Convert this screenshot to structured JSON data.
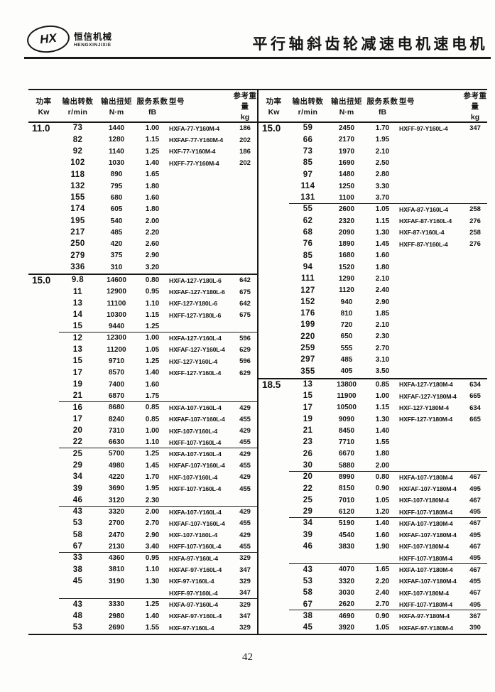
{
  "header": {
    "logo_hx": "HX",
    "logo_cn": "恒信机械",
    "logo_en": "HENGXINJIXIE",
    "title": "平行轴斜齿轮减速电机速电机"
  },
  "columns": [
    {
      "label": "功率",
      "unit": "Kw"
    },
    {
      "label": "输出转数",
      "unit": "r/min"
    },
    {
      "label": "输出扭矩",
      "unit": "N·m"
    },
    {
      "label": "服务系数",
      "unit": "fB"
    },
    {
      "label": "型号",
      "unit": ""
    },
    {
      "label": "参考重量",
      "unit": "kg"
    }
  ],
  "page_number": "42",
  "tables": [
    {
      "name": "left",
      "sections": [
        {
          "power": "11.0",
          "groups": [
            {
              "rows": [
                [
                  "73",
                  "1440",
                  "1.00",
                  "HXFA-77-Y160M-4",
                  "186"
                ],
                [
                  "82",
                  "1280",
                  "1.15",
                  "HXFAF-77-Y160M-4",
                  "202"
                ],
                [
                  "92",
                  "1140",
                  "1.25",
                  "HXF-77-Y160M-4",
                  "186"
                ],
                [
                  "102",
                  "1030",
                  "1.40",
                  "HXFF-77-Y160M-4",
                  "202"
                ],
                [
                  "118",
                  "890",
                  "1.65",
                  "",
                  ""
                ],
                [
                  "132",
                  "795",
                  "1.80",
                  "",
                  ""
                ],
                [
                  "155",
                  "680",
                  "1.60",
                  "",
                  ""
                ],
                [
                  "174",
                  "605",
                  "1.80",
                  "",
                  ""
                ],
                [
                  "195",
                  "540",
                  "2.00",
                  "",
                  ""
                ],
                [
                  "217",
                  "485",
                  "2.20",
                  "",
                  ""
                ],
                [
                  "250",
                  "420",
                  "2.60",
                  "",
                  ""
                ],
                [
                  "279",
                  "375",
                  "2.90",
                  "",
                  ""
                ],
                [
                  "336",
                  "310",
                  "3.20",
                  "",
                  ""
                ]
              ]
            }
          ]
        },
        {
          "power": "15.0",
          "groups": [
            {
              "rows": [
                [
                  "9.8",
                  "14600",
                  "0.80",
                  "HXFA-127-Y180L-6",
                  "642"
                ],
                [
                  "11",
                  "12900",
                  "0.95",
                  "HXFAF-127-Y180L-6",
                  "675"
                ],
                [
                  "13",
                  "11100",
                  "1.10",
                  "HXF-127-Y180L-6",
                  "642"
                ],
                [
                  "14",
                  "10300",
                  "1.15",
                  "HXFF-127-Y180L-6",
                  "675"
                ],
                [
                  "15",
                  "9440",
                  "1.25",
                  "",
                  ""
                ]
              ]
            },
            {
              "rows": [
                [
                  "12",
                  "12300",
                  "1.00",
                  "HXFA-127-Y160L-4",
                  "596"
                ],
                [
                  "13",
                  "11200",
                  "1.05",
                  "HXFAF-127-Y160L-4",
                  "629"
                ],
                [
                  "15",
                  "9710",
                  "1.25",
                  "HXF-127-Y160L-4",
                  "596"
                ],
                [
                  "17",
                  "8570",
                  "1.40",
                  "HXFF-127-Y160L-4",
                  "629"
                ],
                [
                  "19",
                  "7400",
                  "1.60",
                  "",
                  ""
                ],
                [
                  "21",
                  "6870",
                  "1.75",
                  "",
                  ""
                ]
              ]
            },
            {
              "rows": [
                [
                  "16",
                  "8680",
                  "0.85",
                  "HXFA-107-Y160L-4",
                  "429"
                ],
                [
                  "17",
                  "8240",
                  "0.85",
                  "HXFAF-107-Y160L-4",
                  "455"
                ],
                [
                  "20",
                  "7310",
                  "1.00",
                  "HXF-107-Y160L-4",
                  "429"
                ],
                [
                  "22",
                  "6630",
                  "1.10",
                  "HXFF-107-Y160L-4",
                  "455"
                ]
              ]
            },
            {
              "rows": [
                [
                  "25",
                  "5700",
                  "1.25",
                  "HXFA-107-Y160L-4",
                  "429"
                ],
                [
                  "29",
                  "4980",
                  "1.45",
                  "HXFAF-107-Y160L-4",
                  "455"
                ],
                [
                  "34",
                  "4220",
                  "1.70",
                  "HXF-107-Y160L-4",
                  "429"
                ],
                [
                  "39",
                  "3690",
                  "1.95",
                  "HXFF-107-Y160L-4",
                  "455"
                ],
                [
                  "46",
                  "3120",
                  "2.30",
                  "",
                  ""
                ]
              ]
            },
            {
              "rows": [
                [
                  "43",
                  "3320",
                  "2.00",
                  "HXFA-107-Y160L-4",
                  "429"
                ],
                [
                  "53",
                  "2700",
                  "2.70",
                  "HXFAF-107-Y160L-4",
                  "455"
                ],
                [
                  "58",
                  "2470",
                  "2.90",
                  "HXF-107-Y160L-4",
                  "429"
                ],
                [
                  "67",
                  "2130",
                  "3.40",
                  "HXFF-107-Y160L-4",
                  "455"
                ]
              ]
            },
            {
              "rows": [
                [
                  "33",
                  "4360",
                  "0.95",
                  "HXFA-97-Y160L-4",
                  "329"
                ],
                [
                  "38",
                  "3810",
                  "1.10",
                  "HXFAF-97-Y160L-4",
                  "347"
                ],
                [
                  "45",
                  "3190",
                  "1.30",
                  "HXF-97-Y160L-4",
                  "329"
                ],
                [
                  "",
                  "",
                  "",
                  "HXFF-97-Y160L-4",
                  "347"
                ]
              ]
            },
            {
              "rows": [
                [
                  "43",
                  "3330",
                  "1.25",
                  "HXFA-97-Y160L-4",
                  "329"
                ],
                [
                  "48",
                  "2980",
                  "1.40",
                  "HXFAF-97-Y160L-4",
                  "347"
                ],
                [
                  "53",
                  "2690",
                  "1.55",
                  "HXF-97-Y160L-4",
                  "329"
                ]
              ]
            }
          ]
        }
      ]
    },
    {
      "name": "right",
      "sections": [
        {
          "power": "15.0",
          "groups": [
            {
              "rows": [
                [
                  "59",
                  "2450",
                  "1.70",
                  "HXFF-97-Y160L-4",
                  "347"
                ],
                [
                  "66",
                  "2170",
                  "1.95",
                  "",
                  ""
                ],
                [
                  "73",
                  "1970",
                  "2.10",
                  "",
                  ""
                ],
                [
                  "85",
                  "1690",
                  "2.50",
                  "",
                  ""
                ],
                [
                  "97",
                  "1480",
                  "2.80",
                  "",
                  ""
                ],
                [
                  "114",
                  "1250",
                  "3.30",
                  "",
                  ""
                ],
                [
                  "131",
                  "1100",
                  "3.70",
                  "",
                  ""
                ]
              ]
            },
            {
              "rows": [
                [
                  "55",
                  "2600",
                  "1.05",
                  "HXFA-87-Y160L-4",
                  "258"
                ],
                [
                  "62",
                  "2320",
                  "1.15",
                  "HXFAF-87-Y160L-4",
                  "276"
                ],
                [
                  "68",
                  "2090",
                  "1.30",
                  "HXF-87-Y160L-4",
                  "258"
                ],
                [
                  "76",
                  "1890",
                  "1.45",
                  "HXFF-87-Y160L-4",
                  "276"
                ],
                [
                  "85",
                  "1680",
                  "1.60",
                  "",
                  ""
                ],
                [
                  "94",
                  "1520",
                  "1.80",
                  "",
                  ""
                ],
                [
                  "111",
                  "1290",
                  "2.10",
                  "",
                  ""
                ],
                [
                  "127",
                  "1120",
                  "2.40",
                  "",
                  ""
                ],
                [
                  "152",
                  "940",
                  "2.90",
                  "",
                  ""
                ],
                [
                  "176",
                  "810",
                  "1.85",
                  "",
                  ""
                ],
                [
                  "199",
                  "720",
                  "2.10",
                  "",
                  ""
                ],
                [
                  "220",
                  "650",
                  "2.30",
                  "",
                  ""
                ],
                [
                  "259",
                  "555",
                  "2.70",
                  "",
                  ""
                ],
                [
                  "297",
                  "485",
                  "3.10",
                  "",
                  ""
                ],
                [
                  "355",
                  "405",
                  "3.50",
                  "",
                  ""
                ]
              ]
            }
          ]
        },
        {
          "power": "18.5",
          "groups": [
            {
              "rows": [
                [
                  "13",
                  "13800",
                  "0.85",
                  "HXFA-127-Y180M-4",
                  "634"
                ],
                [
                  "15",
                  "11900",
                  "1.00",
                  "HXFAF-127-Y180M-4",
                  "665"
                ],
                [
                  "17",
                  "10500",
                  "1.15",
                  "HXF-127-Y180M-4",
                  "634"
                ],
                [
                  "19",
                  "9090",
                  "1.30",
                  "HXFF-127-Y180M-4",
                  "665"
                ],
                [
                  "21",
                  "8450",
                  "1.40",
                  "",
                  ""
                ],
                [
                  "23",
                  "7710",
                  "1.55",
                  "",
                  ""
                ],
                [
                  "26",
                  "6670",
                  "1.80",
                  "",
                  ""
                ],
                [
                  "30",
                  "5880",
                  "2.00",
                  "",
                  ""
                ]
              ]
            },
            {
              "rows": [
                [
                  "20",
                  "8990",
                  "0.80",
                  "HXFA-107-Y180M-4",
                  "467"
                ],
                [
                  "22",
                  "8150",
                  "0.90",
                  "HXFAF-107-Y180M-4",
                  "495"
                ],
                [
                  "25",
                  "7010",
                  "1.05",
                  "HXF-107-Y180M-4",
                  "467"
                ],
                [
                  "29",
                  "6120",
                  "1.20",
                  "HXFF-107-Y180M-4",
                  "495"
                ]
              ]
            },
            {
              "rows": [
                [
                  "34",
                  "5190",
                  "1.40",
                  "HXFA-107-Y180M-4",
                  "467"
                ],
                [
                  "39",
                  "4540",
                  "1.60",
                  "HXFAF-107-Y180M-4",
                  "495"
                ],
                [
                  "46",
                  "3830",
                  "1.90",
                  "HXF-107-Y180M-4",
                  "467"
                ],
                [
                  "",
                  "",
                  "",
                  "HXFF-107-Y180M-4",
                  "495"
                ]
              ]
            },
            {
              "rows": [
                [
                  "43",
                  "4070",
                  "1.65",
                  "HXFA-107-Y180M-4",
                  "467"
                ],
                [
                  "53",
                  "3320",
                  "2.20",
                  "HXFAF-107-Y180M-4",
                  "495"
                ],
                [
                  "58",
                  "3030",
                  "2.40",
                  "HXF-107-Y180M-4",
                  "467"
                ],
                [
                  "67",
                  "2620",
                  "2.70",
                  "HXFF-107-Y180M-4",
                  "495"
                ]
              ]
            },
            {
              "rows": [
                [
                  "38",
                  "4690",
                  "0.90",
                  "HXFA-97-Y180M-4",
                  "367"
                ],
                [
                  "45",
                  "3920",
                  "1.05",
                  "HXFAF-97-Y180M-4",
                  "390"
                ]
              ]
            }
          ]
        }
      ]
    }
  ]
}
